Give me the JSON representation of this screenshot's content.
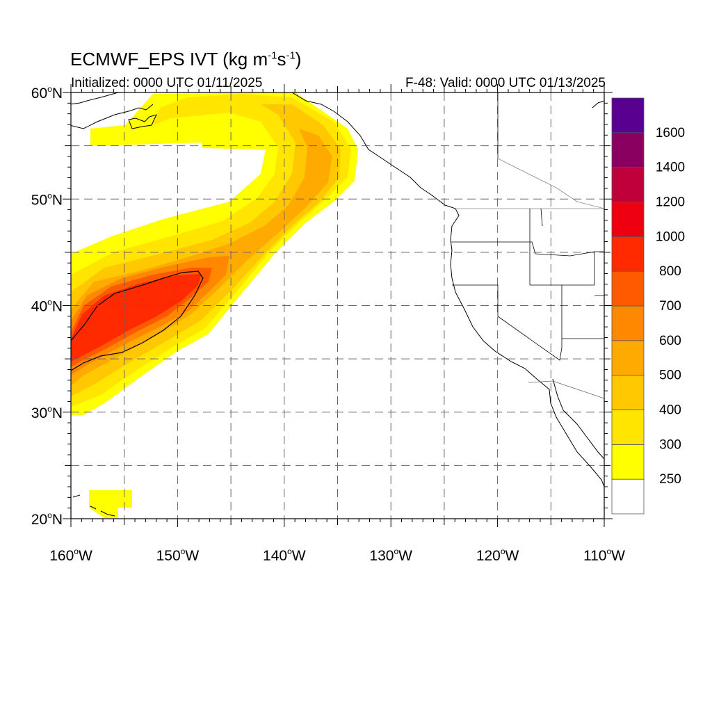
{
  "title": {
    "prefix": "ECMWF_EPS IVT (kg m",
    "exp1": "-1",
    "mid": "s",
    "exp2": "-1",
    "suffix": ")"
  },
  "subtitle_left": "Initialized: 0000 UTC 01/11/2025",
  "subtitle_right": "F-48: Valid: 0000 UTC 01/13/2025",
  "lat_labels": [
    {
      "deg": "60",
      "hemi": "N",
      "lat": 60
    },
    {
      "deg": "50",
      "hemi": "N",
      "lat": 50
    },
    {
      "deg": "40",
      "hemi": "N",
      "lat": 40
    },
    {
      "deg": "30",
      "hemi": "N",
      "lat": 30
    },
    {
      "deg": "20",
      "hemi": "N",
      "lat": 20
    }
  ],
  "lon_labels": [
    {
      "deg": "160",
      "hemi": "W",
      "lon": -160
    },
    {
      "deg": "150",
      "hemi": "W",
      "lon": -150
    },
    {
      "deg": "140",
      "hemi": "W",
      "lon": -140
    },
    {
      "deg": "130",
      "hemi": "W",
      "lon": -130
    },
    {
      "deg": "120",
      "hemi": "W",
      "lon": -120
    },
    {
      "deg": "110",
      "hemi": "W",
      "lon": -110
    }
  ],
  "colorbar": {
    "colors": [
      "#ffffff",
      "#ffff00",
      "#ffe500",
      "#ffc800",
      "#ffaa00",
      "#ff8800",
      "#ff5a00",
      "#ff2a00",
      "#ee0010",
      "#c0003a",
      "#8a0060",
      "#5a0090"
    ],
    "labels": [
      "250",
      "300",
      "400",
      "500",
      "600",
      "700",
      "800",
      "1000",
      "1200",
      "1400",
      "1600"
    ]
  },
  "ivt_levels": [
    {
      "threshold": "250",
      "color": "#ffff00"
    },
    {
      "threshold": "300",
      "color": "#ffe500"
    },
    {
      "threshold": "400",
      "color": "#ffc800"
    },
    {
      "threshold": "500",
      "color": "#ffaa00"
    },
    {
      "threshold": "600",
      "color": "#ff8800"
    },
    {
      "threshold": "700",
      "color": "#ff5a00"
    },
    {
      "threshold": "800",
      "color": "#ff2a00"
    }
  ],
  "map": {
    "lon_range": [
      -160,
      -110
    ],
    "lat_range": [
      20,
      60
    ],
    "grid_lons": [
      -155,
      -150,
      -145,
      -140,
      -135,
      -130,
      -125,
      -120,
      -115
    ],
    "grid_lats": [
      25,
      30,
      35,
      40,
      45,
      50,
      55
    ]
  }
}
